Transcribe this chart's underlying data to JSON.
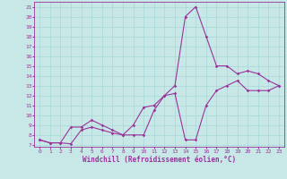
{
  "title": "",
  "xlabel": "Windchill (Refroidissement éolien,°C)",
  "ylabel": "",
  "bg_color": "#c8e8e8",
  "line_color": "#993399",
  "xlim": [
    -0.5,
    23.5
  ],
  "ylim": [
    6.8,
    21.5
  ],
  "yticks": [
    7,
    8,
    9,
    10,
    11,
    12,
    13,
    14,
    15,
    16,
    17,
    18,
    19,
    20,
    21
  ],
  "xticks": [
    0,
    1,
    2,
    3,
    4,
    5,
    6,
    7,
    8,
    9,
    10,
    11,
    12,
    13,
    14,
    15,
    16,
    17,
    18,
    19,
    20,
    21,
    22,
    23
  ],
  "line1_x": [
    0,
    1,
    2,
    3,
    4,
    5,
    6,
    7,
    8,
    9,
    10,
    11,
    12,
    13,
    14,
    15,
    16,
    17,
    18,
    19,
    20,
    21,
    22,
    23
  ],
  "line1_y": [
    7.5,
    7.2,
    7.2,
    7.1,
    8.5,
    8.8,
    8.5,
    8.2,
    8.0,
    8.0,
    8.0,
    10.5,
    12.0,
    13.0,
    20.0,
    21.0,
    18.0,
    15.0,
    15.0,
    14.2,
    14.5,
    14.2,
    13.5,
    13.0
  ],
  "line2_x": [
    0,
    1,
    2,
    3,
    4,
    5,
    6,
    7,
    8,
    9,
    10,
    11,
    12,
    13,
    14,
    15,
    16,
    17,
    18,
    19,
    20,
    21,
    22,
    23
  ],
  "line2_y": [
    7.5,
    7.2,
    7.2,
    8.8,
    8.8,
    9.5,
    9.0,
    8.5,
    8.0,
    9.0,
    10.8,
    11.0,
    12.0,
    12.2,
    7.5,
    7.5,
    11.0,
    12.5,
    13.0,
    13.5,
    12.5,
    12.5,
    12.5,
    13.0
  ],
  "grid_color": "#a8d8d8",
  "marker": "D",
  "markersize": 1.8,
  "linewidth": 0.8,
  "tick_fontsize": 4.5,
  "xlabel_fontsize": 5.5
}
